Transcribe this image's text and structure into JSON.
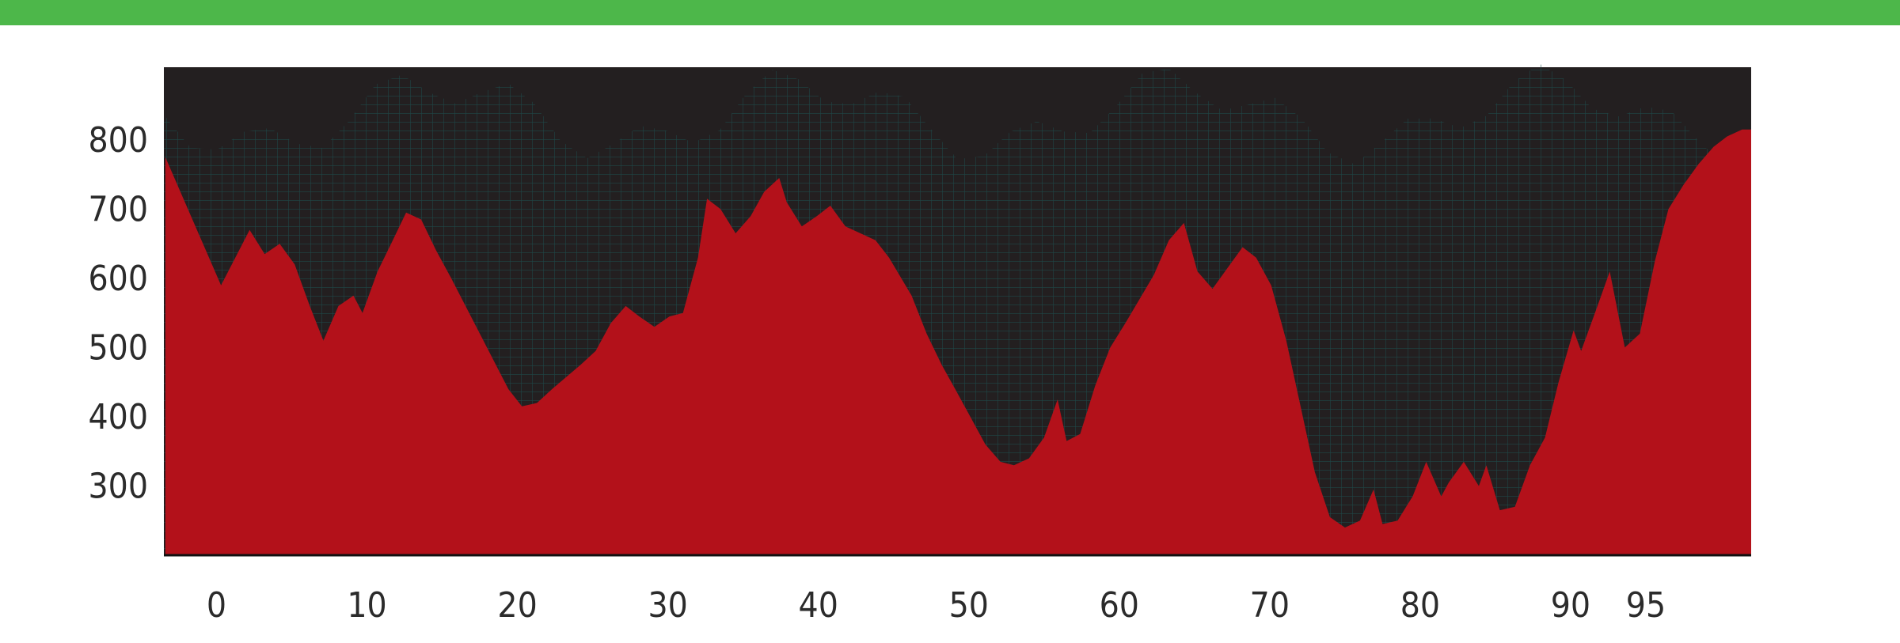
{
  "colors": {
    "top_bar": "#4db74a",
    "plot_background": "#231f20",
    "mesh": "#1e4a4a",
    "area_fill": "#b3111a",
    "baseline": "#111111",
    "tick_text": "#2b2b2b"
  },
  "chart_data": {
    "type": "area",
    "title": "",
    "xlabel": "",
    "ylabel": "",
    "grid": false,
    "legend": "none",
    "xlim": [
      -3.5,
      102
    ],
    "ylim": [
      200,
      905
    ],
    "x_ticks": [
      {
        "value": 0,
        "label": "0"
      },
      {
        "value": 10,
        "label": "10"
      },
      {
        "value": 20,
        "label": "20"
      },
      {
        "value": 30,
        "label": "30"
      },
      {
        "value": 40,
        "label": "40"
      },
      {
        "value": 50,
        "label": "50"
      },
      {
        "value": 60,
        "label": "60"
      },
      {
        "value": 70,
        "label": "70"
      },
      {
        "value": 80,
        "label": "80"
      },
      {
        "value": 90,
        "label": "90"
      },
      {
        "value": 95,
        "label": "95"
      }
    ],
    "y_ticks": [
      {
        "value": 800,
        "label": "800"
      },
      {
        "value": 700,
        "label": "700"
      },
      {
        "value": 600,
        "label": "600"
      },
      {
        "value": 500,
        "label": "500"
      },
      {
        "value": 400,
        "label": "400"
      },
      {
        "value": 300,
        "label": "300"
      }
    ],
    "series": [
      {
        "x": [
          -3.4,
          0.3,
          2.2,
          3.2,
          4.2,
          5.2,
          6.2,
          7.1,
          8.1,
          9.1,
          9.7,
          10.7,
          11.6,
          12.6,
          13.6,
          14.6,
          15.6,
          17.5,
          19.4,
          20.3,
          21.3,
          22.3,
          24.2,
          25.2,
          26.2,
          27.2,
          28.1,
          29.1,
          30.1,
          31.0,
          32.0,
          32.6,
          33.5,
          34.5,
          35.5,
          36.4,
          37.4,
          37.9,
          38.9,
          39.9,
          40.8,
          41.8,
          43.8,
          44.7,
          46.2,
          47.2,
          48.2,
          49.1,
          50.1,
          51.1,
          52.1,
          53.0,
          54.0,
          55.0,
          55.9,
          56.5,
          57.4,
          58.4,
          59.4,
          60.4,
          62.3,
          63.3,
          64.3,
          65.2,
          66.2,
          67.2,
          68.2,
          69.1,
          70.1,
          71.1,
          72.1,
          73.0,
          74.0,
          75.0,
          76.0,
          76.9,
          77.5,
          78.5,
          79.5,
          80.4,
          81.4,
          81.9,
          82.9,
          83.9,
          84.4,
          85.3,
          86.3,
          87.3,
          88.3,
          89.2,
          90.2,
          90.7,
          91.7,
          92.6,
          93.6,
          94.6,
          95.6,
          96.5,
          97.5,
          98.5,
          99.5,
          100.4,
          101.4,
          102.0
        ],
        "values": [
          775,
          590,
          670,
          635,
          650,
          620,
          560,
          510,
          560,
          575,
          550,
          610,
          650,
          695,
          685,
          640,
          600,
          520,
          440,
          415,
          420,
          440,
          475,
          495,
          535,
          560,
          545,
          530,
          545,
          550,
          630,
          715,
          700,
          665,
          690,
          725,
          745,
          710,
          675,
          690,
          705,
          675,
          655,
          630,
          575,
          520,
          475,
          440,
          400,
          360,
          335,
          330,
          340,
          370,
          425,
          365,
          375,
          445,
          500,
          535,
          605,
          655,
          680,
          610,
          585,
          615,
          645,
          630,
          590,
          510,
          410,
          320,
          255,
          240,
          250,
          295,
          245,
          250,
          285,
          335,
          285,
          305,
          335,
          300,
          330,
          265,
          270,
          330,
          370,
          450,
          525,
          495,
          555,
          610,
          500,
          520,
          625,
          700,
          735,
          765,
          790,
          805,
          815,
          815
        ]
      }
    ]
  }
}
